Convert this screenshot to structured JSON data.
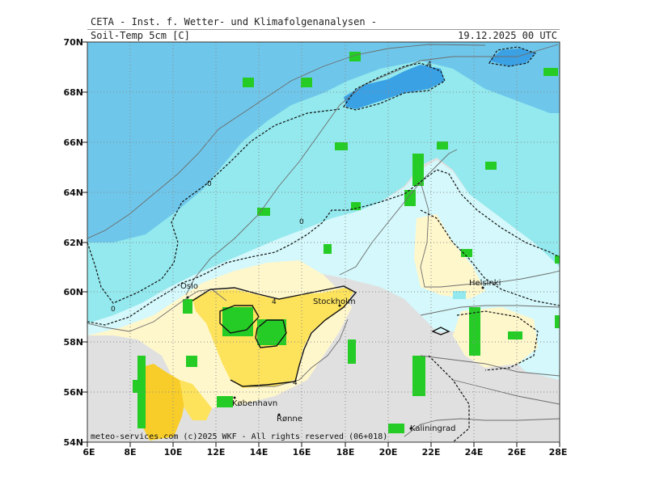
{
  "header": {
    "title": "CETA - Inst. f. Wetter- und Klimafolgenanalysen -",
    "variable": "Soil-Temp 5cm [C]",
    "datetime": "19.12.2025 00 UTC"
  },
  "axes": {
    "lat_labels": [
      "70N",
      "68N",
      "66N",
      "64N",
      "62N",
      "60N",
      "58N",
      "56N",
      "54N"
    ],
    "lon_labels": [
      "6E",
      "8E",
      "10E",
      "12E",
      "14E",
      "16E",
      "18E",
      "20E",
      "22E",
      "24E",
      "26E",
      "28E"
    ]
  },
  "cities": [
    "Oslo",
    "Stockholm",
    "Helsinki",
    "København",
    "Rønne",
    "Kaliningrad"
  ],
  "contour_labels": [
    "0",
    "0",
    "0",
    "4",
    "4",
    "4"
  ],
  "footer": {
    "credit": "meteo-services.com (c)2025 WKF - All rights reserved (06+018)"
  },
  "colors": {
    "land_mask": "#e0e0e0",
    "class_below_minus2": "#6ec7ea",
    "class_minus2_to_0": "#93e9ee",
    "class_0_to_2": "#d4f8fb",
    "class_2_to_4": "#fff7cc",
    "class_4_to_6": "#fde35c",
    "class_6_to_8": "#f8cd2a",
    "class_deep_cold": "#3aa1e5",
    "water_gridcells": "#26cc26"
  }
}
